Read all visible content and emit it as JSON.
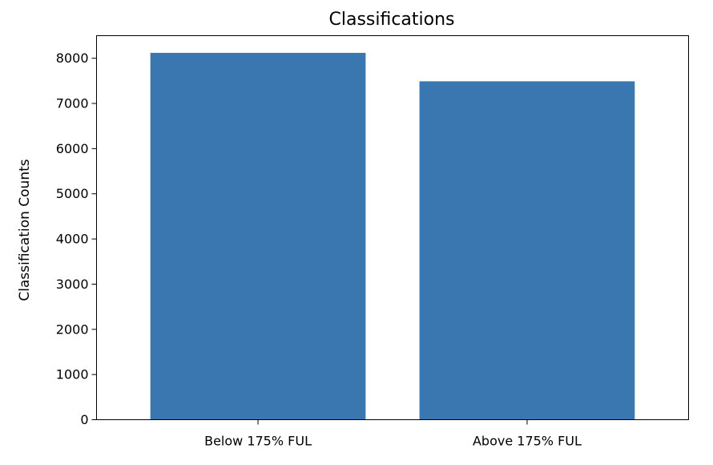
{
  "chart_data": {
    "type": "bar",
    "title": "Classifications",
    "xlabel": "",
    "ylabel": "Classification Counts",
    "categories": [
      "Below 175% FUL",
      "Above 175% FUL"
    ],
    "values": [
      8120,
      7490
    ],
    "ylim": [
      0,
      8500
    ],
    "yticks": [
      0,
      1000,
      2000,
      3000,
      4000,
      5000,
      6000,
      7000,
      8000
    ],
    "bar_color": "#3a76af",
    "grid": false,
    "legend": "none"
  }
}
